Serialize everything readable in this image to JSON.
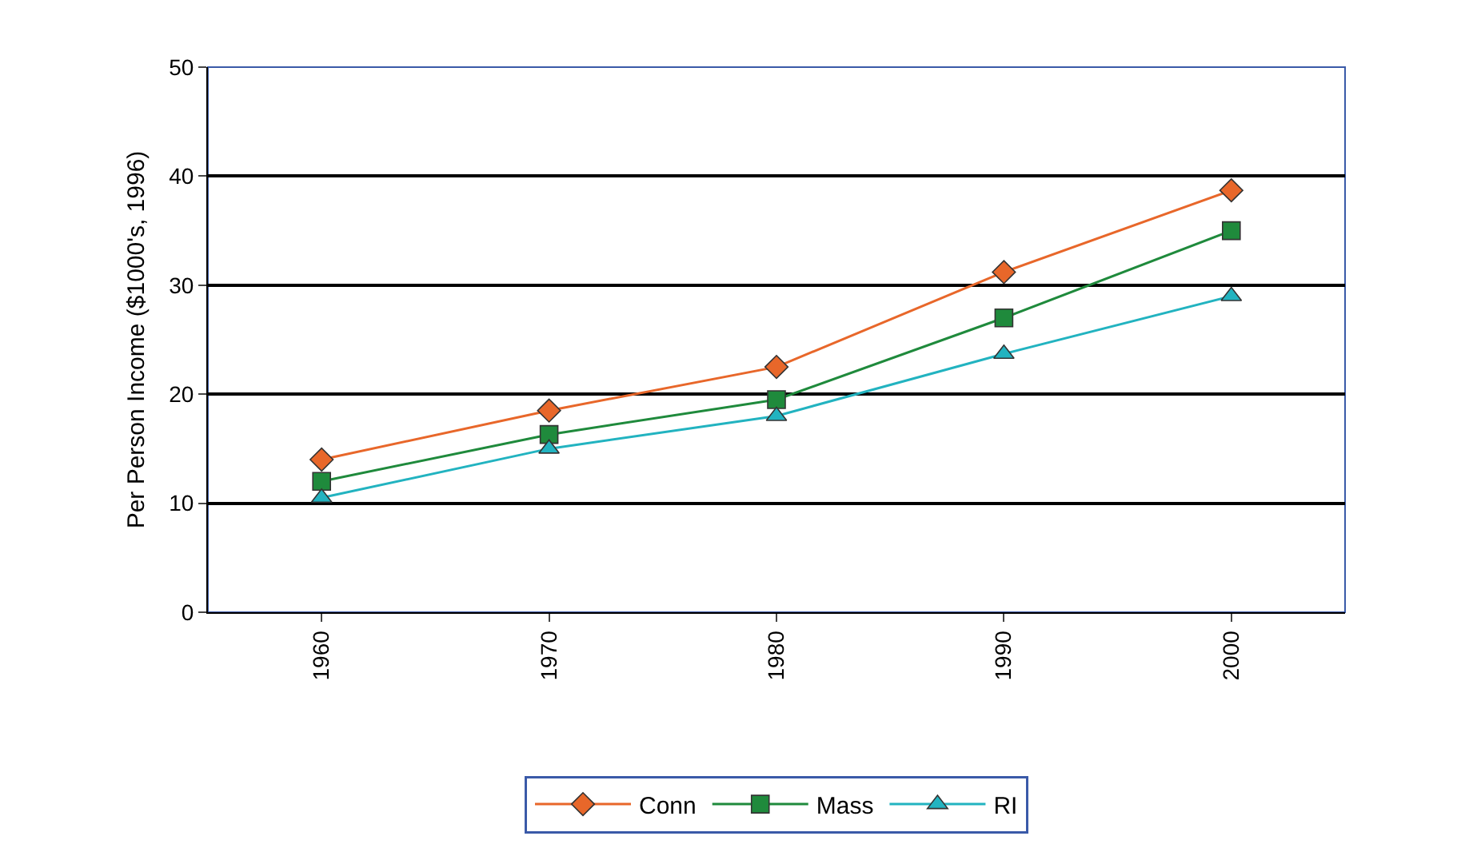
{
  "chart_data": {
    "type": "line",
    "ylabel": "Per Person Income ($1000's, 1996)",
    "categories": [
      "1960",
      "1970",
      "1980",
      "1990",
      "2000"
    ],
    "series": [
      {
        "name": "Conn",
        "color": "#e8672a",
        "marker": "diamond",
        "values": [
          14,
          18.5,
          22.5,
          31.2,
          38.7
        ]
      },
      {
        "name": "Mass",
        "color": "#1f8a3c",
        "marker": "square",
        "values": [
          12,
          16.3,
          19.5,
          27,
          35
        ]
      },
      {
        "name": "RI",
        "color": "#22b3c0",
        "marker": "triangle",
        "values": [
          10.5,
          15,
          18,
          23.7,
          29
        ]
      }
    ],
    "ylim": [
      0,
      50
    ],
    "yticks": [
      0,
      10,
      20,
      30,
      40,
      50
    ],
    "grid": "y",
    "legend": "bottom",
    "line_style": "solid"
  }
}
